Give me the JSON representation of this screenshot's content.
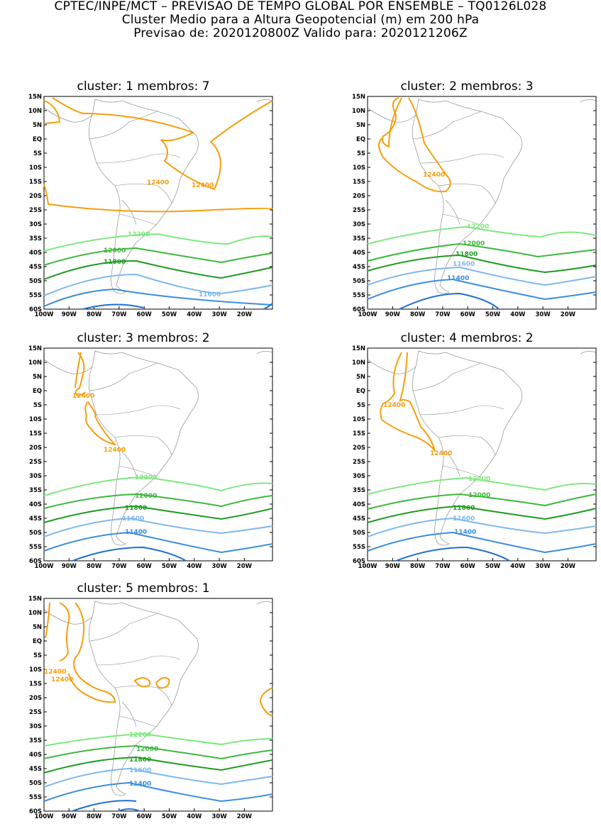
{
  "header": {
    "line1": "CPTEC/INPE/MCT – PREVISAO DE TEMPO GLOBAL POR ENSEMBLE – TQ0126L028",
    "line2": "Cluster Medio para a Altura Geopotencial (m) em 200 hPa",
    "line3": "Previsao de: 2020120800Z    Valido para: 2020121206Z"
  },
  "axes": {
    "lat_labels": [
      "15N",
      "10N",
      "5N",
      "EQ",
      "5S",
      "10S",
      "15S",
      "20S",
      "25S",
      "30S",
      "35S",
      "40S",
      "45S",
      "50S",
      "55S",
      "60S"
    ],
    "lon_labels": [
      "100W",
      "90W",
      "80W",
      "70W",
      "60W",
      "50W",
      "40W",
      "30W",
      "20W"
    ]
  },
  "colors": {
    "c12400": "#f59e0b",
    "c12200": "#7ee87e",
    "c12000": "#3cb83c",
    "c11800": "#1f9a1f",
    "c11600": "#7fb8ee",
    "c11400": "#3a8ee0",
    "c11200": "#1f6fcf",
    "coast": "#9a9a9a",
    "border": "#888888"
  },
  "panels": [
    {
      "title": "cluster: 1   membros: 7",
      "labels": {
        "l12400a": "12400",
        "l12400b": "12400",
        "l12200": "12200",
        "l12000": "12000",
        "l11800": "11800",
        "l11600": "11600"
      }
    },
    {
      "title": "cluster: 2   membros: 3",
      "labels": {
        "l12400a": "12400",
        "l12200": "12200",
        "l12000": "12000",
        "l11800": "11800",
        "l11600": "11600",
        "l11400": "11400"
      }
    },
    {
      "title": "cluster: 3   membros: 2",
      "labels": {
        "l12400a": "12400",
        "l12400b": "12400",
        "l12200": "12200",
        "l12000": "12000",
        "l11800": "11800",
        "l11600": "11600",
        "l11400": "11400"
      }
    },
    {
      "title": "cluster: 4   membros: 2",
      "labels": {
        "l12400a": "12400",
        "l12400b": "12400",
        "l12200": "12200",
        "l12000": "12000",
        "l11800": "11800",
        "l11600": "11600",
        "l11400": "11400"
      }
    },
    {
      "title": "cluster: 5   membros: 1",
      "labels": {
        "l12400a": "12400",
        "l12400b": "12400",
        "l12200": "12200",
        "l12000": "12000",
        "l11800": "11800",
        "l11600": "11600",
        "l11400": "11400"
      }
    }
  ]
}
